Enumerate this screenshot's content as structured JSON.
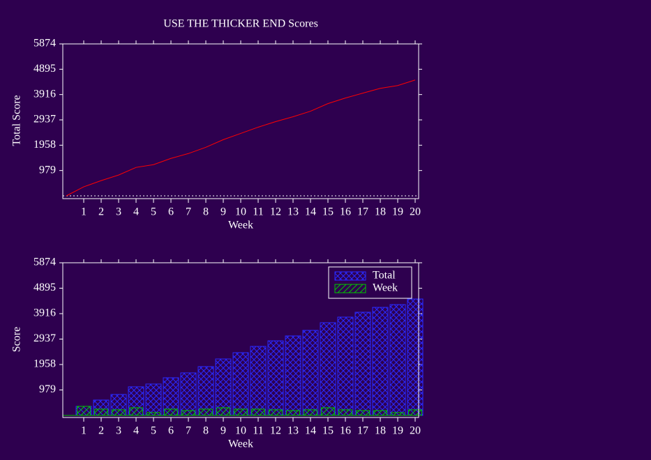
{
  "chart_data": [
    {
      "type": "line",
      "title": "USE THE THICKER END Scores",
      "xlabel": "Week",
      "ylabel": "Total Score",
      "x": [
        0,
        1,
        2,
        3,
        4,
        5,
        6,
        7,
        8,
        9,
        10,
        11,
        12,
        13,
        14,
        15,
        16,
        17,
        18,
        19,
        20
      ],
      "values": [
        0,
        349,
        590,
        805,
        1100,
        1207,
        1448,
        1636,
        1877,
        2172,
        2414,
        2655,
        2870,
        3058,
        3272,
        3567,
        3782,
        3970,
        4157,
        4264,
        4479
      ],
      "color": "#ff0000",
      "xlim": [
        0,
        20
      ],
      "xticks": [
        1,
        2,
        3,
        4,
        5,
        6,
        7,
        8,
        9,
        10,
        11,
        12,
        13,
        14,
        15,
        16,
        17,
        18,
        19,
        20
      ],
      "ylim": [
        0,
        5874
      ],
      "yticks": [
        979,
        1958,
        2937,
        3916,
        4895,
        5874
      ]
    },
    {
      "type": "bar",
      "xlabel": "Week",
      "ylabel": "Score",
      "x": [
        1,
        2,
        3,
        4,
        5,
        6,
        7,
        8,
        9,
        10,
        11,
        12,
        13,
        14,
        15,
        16,
        17,
        18,
        19,
        20
      ],
      "series": [
        {
          "name": "Total",
          "color": "#2a2aff",
          "values": [
            349,
            590,
            805,
            1100,
            1207,
            1448,
            1636,
            1877,
            2172,
            2414,
            2655,
            2870,
            3058,
            3272,
            3567,
            3782,
            3970,
            4157,
            4264,
            4479
          ]
        },
        {
          "name": "Week",
          "color": "#00c800",
          "values": [
            349,
            241,
            215,
            295,
            107,
            241,
            188,
            241,
            295,
            241,
            241,
            215,
            188,
            215,
            295,
            215,
            188,
            188,
            107,
            215
          ]
        }
      ],
      "legend": "upper right",
      "xlim": [
        0,
        20
      ],
      "xticks": [
        1,
        2,
        3,
        4,
        5,
        6,
        7,
        8,
        9,
        10,
        11,
        12,
        13,
        14,
        15,
        16,
        17,
        18,
        19,
        20
      ],
      "ylim": [
        0,
        5874
      ],
      "yticks": [
        979,
        1958,
        2937,
        3916,
        4895,
        5874
      ]
    }
  ]
}
